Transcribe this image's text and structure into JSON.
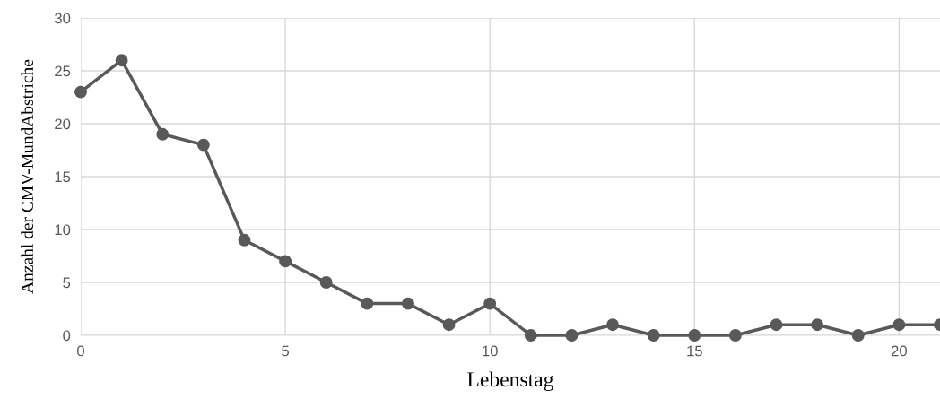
{
  "chart_data": {
    "type": "line",
    "xlabel": "Lebenstag",
    "ylabel": "Anzahl der CMV-MundAbstriche",
    "x": [
      0,
      1,
      2,
      3,
      4,
      5,
      6,
      7,
      8,
      9,
      10,
      11,
      12,
      13,
      14,
      15,
      16,
      17,
      18,
      19,
      20,
      21
    ],
    "series": [
      {
        "color": "#595959",
        "values": [
          23,
          26,
          19,
          18,
          9,
          7,
          5,
          3,
          3,
          1,
          3,
          0,
          0,
          1,
          0,
          0,
          0,
          1,
          1,
          0,
          1,
          1
        ]
      }
    ],
    "xlim": [
      0,
      21
    ],
    "xticks": [
      0,
      5,
      10,
      15,
      20
    ],
    "ylim": [
      0,
      30
    ],
    "yticks": [
      0,
      5,
      10,
      15,
      20,
      25,
      30
    ],
    "grid": true,
    "marker": "circle",
    "line_style": "solid",
    "legend": false
  }
}
